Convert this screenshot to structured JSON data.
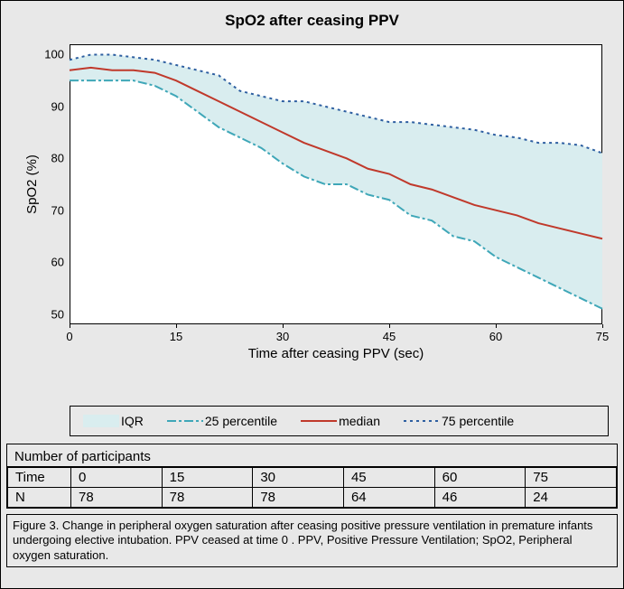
{
  "chart": {
    "title": "SpO2 after ceasing PPV",
    "type": "line-with-band",
    "x_label": "Time after ceasing PPV (sec)",
    "y_label": "SpO2 (%)",
    "xlim": [
      0,
      75
    ],
    "ylim": [
      48,
      102
    ],
    "xticks": [
      0,
      15,
      30,
      45,
      60,
      75
    ],
    "yticks": [
      50,
      60,
      70,
      80,
      90,
      100
    ],
    "tick_fontsize": 13,
    "label_fontsize": 15,
    "title_fontsize": 17,
    "background_color": "#ffffff",
    "frame_color": "#000000",
    "page_background": "#e8e8e8",
    "series": {
      "p25": {
        "label": "25 percentile",
        "color": "#3fa7b8",
        "dash": "10,3,3,3",
        "width": 2,
        "x": [
          0,
          3,
          6,
          9,
          12,
          15,
          18,
          21,
          24,
          27,
          30,
          33,
          36,
          39,
          42,
          45,
          48,
          51,
          54,
          57,
          60,
          63,
          66,
          69,
          72,
          75
        ],
        "y": [
          95,
          95,
          95,
          95,
          94,
          92,
          89,
          86,
          84,
          82,
          79,
          76.5,
          75,
          75,
          73,
          72,
          69,
          68,
          65,
          64,
          61,
          59,
          57,
          55,
          53,
          51
        ]
      },
      "median": {
        "label": "median",
        "color": "#c0392b",
        "dash": "none",
        "width": 2,
        "x": [
          0,
          3,
          6,
          9,
          12,
          15,
          18,
          21,
          24,
          27,
          30,
          33,
          36,
          39,
          42,
          45,
          48,
          51,
          54,
          57,
          60,
          63,
          66,
          69,
          72,
          75
        ],
        "y": [
          97,
          97.5,
          97,
          97,
          96.5,
          95,
          93,
          91,
          89,
          87,
          85,
          83,
          81.5,
          80,
          78,
          77,
          75,
          74,
          72.5,
          71,
          70,
          69,
          67.5,
          66.5,
          65.5,
          64.5
        ]
      },
      "p75": {
        "label": "75 percentile",
        "color": "#2e5fa1",
        "dash": "3,4",
        "width": 2,
        "x": [
          0,
          3,
          6,
          9,
          12,
          15,
          18,
          21,
          24,
          27,
          30,
          33,
          36,
          39,
          42,
          45,
          48,
          51,
          54,
          57,
          60,
          63,
          66,
          69,
          72,
          75
        ],
        "y": [
          99,
          100,
          100,
          99.5,
          99,
          98,
          97,
          96,
          93,
          92,
          91,
          91,
          90,
          89,
          88,
          87,
          87,
          86.5,
          86,
          85.5,
          84.5,
          84,
          83,
          83,
          82.5,
          81
        ]
      }
    },
    "iqr_fill": {
      "label": "IQR",
      "color": "#d9edef",
      "opacity": 1.0,
      "upper_series": "p75",
      "lower_series": "p25"
    },
    "legend": {
      "position": "below",
      "border_color": "#000000",
      "background": "#e8e8e8",
      "items": [
        "iqr",
        "p25",
        "median",
        "p75"
      ],
      "labels": {
        "iqr": "IQR",
        "p25": "25 percentile",
        "median": "median",
        "p75": "75 percentile"
      }
    }
  },
  "table": {
    "title": "Number of participants",
    "row_labels": [
      "Time",
      "N"
    ],
    "columns": [
      "0",
      "15",
      "30",
      "45",
      "60",
      "75"
    ],
    "rows": [
      [
        "0",
        "15",
        "30",
        "45",
        "60",
        "75"
      ],
      [
        "78",
        "78",
        "78",
        "64",
        "46",
        "24"
      ]
    ]
  },
  "caption": "Figure 3. Change in peripheral oxygen saturation after ceasing positive pressure ventilation in premature infants undergoing elective intubation. PPV ceased at time 0 . PPV, Positive Pressure Ventilation; SpO2, Peripheral oxygen saturation."
}
